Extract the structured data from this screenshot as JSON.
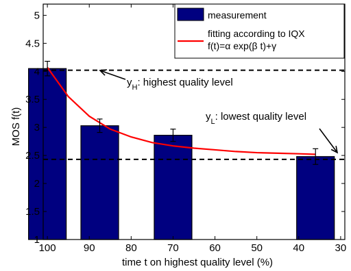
{
  "chart_data": {
    "type": "bar",
    "xlabel": "time t on highest quality level (%)",
    "ylabel": "MOS f(t)",
    "xlim": [
      101,
      29
    ],
    "ylim": [
      1,
      5.2
    ],
    "x_reversed": true,
    "x_ticks": [
      "100",
      "90",
      "80",
      "70",
      "60",
      "50",
      "40",
      "30"
    ],
    "y_ticks": [
      "1",
      "1.5",
      "2",
      "2.5",
      "3",
      "3.5",
      "4",
      "4.5",
      "5"
    ],
    "grid": false,
    "legend_position": "top-right",
    "bar_color": "#000080",
    "fit_color": "#ff0000",
    "series": [
      {
        "name": "measurement",
        "kind": "bar",
        "x": [
          100,
          87.5,
          70,
          36
        ],
        "y": [
          4.05,
          3.03,
          2.86,
          2.48
        ],
        "error": [
          0.13,
          0.12,
          0.11,
          0.14
        ]
      },
      {
        "name": "fitting according to IQX f(t)=α exp(β t)+γ",
        "kind": "line",
        "model": "f(t)=α exp(β t)+γ"
      }
    ],
    "fit_curve": {
      "x": [
        100,
        95,
        90,
        85,
        80,
        75,
        70,
        65,
        60,
        55,
        50,
        45,
        40,
        36
      ],
      "y": [
        4.07,
        3.55,
        3.2,
        2.97,
        2.83,
        2.73,
        2.67,
        2.63,
        2.6,
        2.57,
        2.55,
        2.54,
        2.53,
        2.52
      ]
    },
    "reference_lines": [
      {
        "y": 4.02,
        "label_main": "y",
        "label_sub": "H",
        "label_rest": ": highest quality level"
      },
      {
        "y": 2.43,
        "label_main": "y",
        "label_sub": "L",
        "label_rest": ": lowest quality level"
      }
    ],
    "legend": {
      "measurement_label": "measurement",
      "fit_label_line1": "fitting according to IQX",
      "fit_label_line2": "f(t)=α exp(β t)+γ"
    }
  }
}
